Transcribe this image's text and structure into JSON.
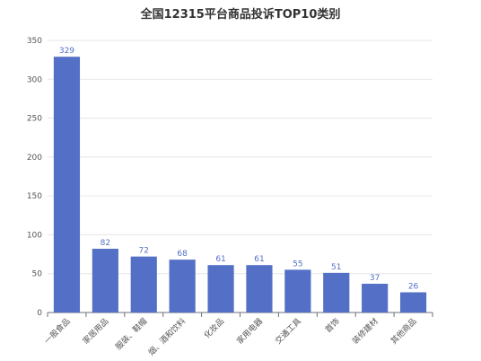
{
  "chart_data": {
    "type": "bar",
    "title": "全国12315平台商品投诉TOP10类别",
    "categories": [
      "一般食品",
      "家居用品",
      "服装、鞋帽",
      "烟、酒和饮料",
      "化妆品",
      "家用电器",
      "交通工具",
      "首饰",
      "装修建材",
      "其他商品"
    ],
    "values": [
      329,
      82,
      72,
      68,
      61,
      61,
      55,
      51,
      37,
      26
    ],
    "ylim": [
      0,
      350
    ],
    "yticks": [
      0,
      50,
      100,
      150,
      200,
      250,
      300,
      350
    ],
    "grid": true,
    "xlabel": "",
    "ylabel": "",
    "colors": {
      "bar": "#5470c6",
      "label": "#5470c6",
      "grid": "#e6e6e6",
      "axis": "#6e7079"
    }
  }
}
